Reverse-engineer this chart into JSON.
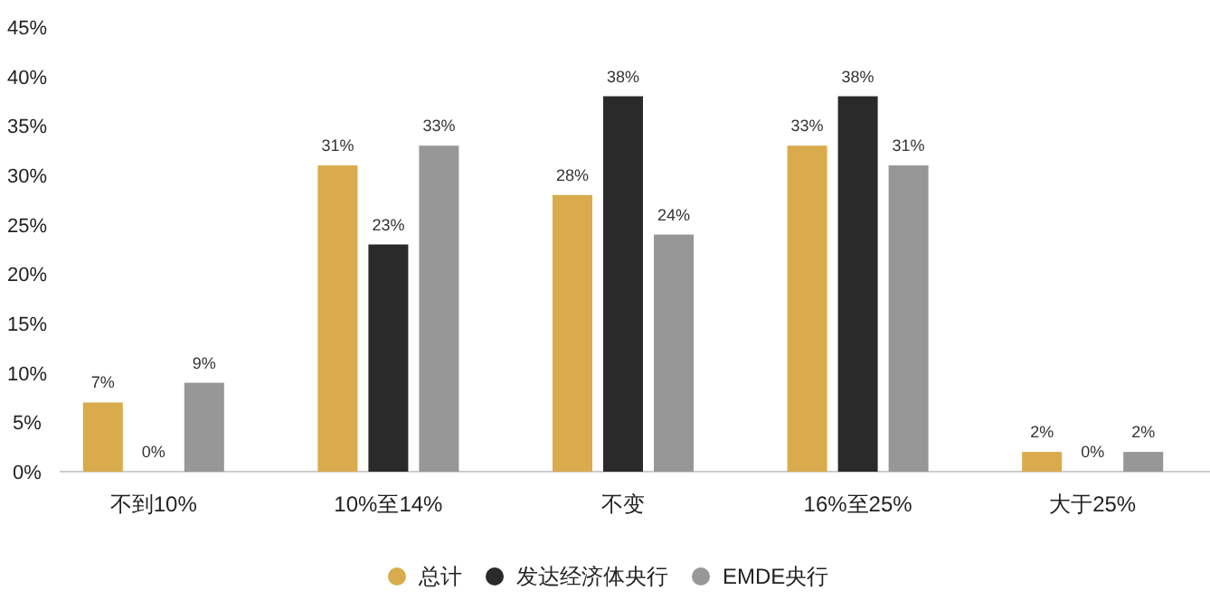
{
  "chart_data": {
    "type": "bar",
    "categories": [
      "不到10%",
      "10%至14%",
      "不变",
      "16%至25%",
      "大于25%"
    ],
    "series": [
      {
        "name": "总计",
        "color": "#d9ab4c",
        "values": [
          7,
          31,
          28,
          33,
          2
        ],
        "value_labels": [
          "7%",
          "31%",
          "28%",
          "33%",
          "2%"
        ]
      },
      {
        "name": "发达经济体央行",
        "color": "#2a2a2a",
        "values": [
          0,
          23,
          38,
          38,
          0
        ],
        "value_labels": [
          "0%",
          "23%",
          "38%",
          "38%",
          "0%"
        ]
      },
      {
        "name": "EMDE央行",
        "color": "#979797",
        "values": [
          9,
          33,
          24,
          31,
          2
        ],
        "value_labels": [
          "9%",
          "33%",
          "24%",
          "31%",
          "2%"
        ]
      }
    ],
    "ylim": [
      0,
      45
    ],
    "yticks": [
      {
        "value": 0,
        "label": "0%"
      },
      {
        "value": 5,
        "label": "5%"
      },
      {
        "value": 10,
        "label": "10%"
      },
      {
        "value": 15,
        "label": "15%"
      },
      {
        "value": 20,
        "label": "20%"
      },
      {
        "value": 25,
        "label": "25%"
      },
      {
        "value": 30,
        "label": "30%"
      },
      {
        "value": 35,
        "label": "35%"
      },
      {
        "value": 40,
        "label": "40%"
      },
      {
        "value": 45,
        "label": "45%"
      }
    ],
    "legend": "bottom"
  }
}
